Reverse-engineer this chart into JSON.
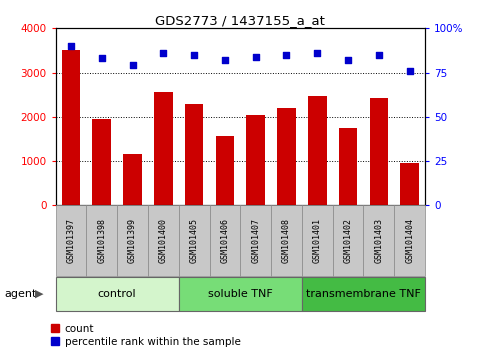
{
  "title": "GDS2773 / 1437155_a_at",
  "samples": [
    "GSM101397",
    "GSM101398",
    "GSM101399",
    "GSM101400",
    "GSM101405",
    "GSM101406",
    "GSM101407",
    "GSM101408",
    "GSM101401",
    "GSM101402",
    "GSM101403",
    "GSM101404"
  ],
  "counts": [
    3520,
    1960,
    1160,
    2560,
    2280,
    1570,
    2030,
    2200,
    2480,
    1740,
    2430,
    960
  ],
  "percentiles": [
    90,
    83,
    79,
    86,
    85,
    82,
    84,
    85,
    86,
    82,
    85,
    76
  ],
  "bar_color": "#cc0000",
  "dot_color": "#0000cc",
  "ylim_left": [
    0,
    4000
  ],
  "ylim_right": [
    0,
    100
  ],
  "yticks_left": [
    0,
    1000,
    2000,
    3000,
    4000
  ],
  "yticks_right": [
    0,
    25,
    50,
    75,
    100
  ],
  "groups": [
    {
      "label": "control",
      "start": 0,
      "end": 4,
      "color": "#d4f5cc"
    },
    {
      "label": "soluble TNF",
      "start": 4,
      "end": 8,
      "color": "#77dd77"
    },
    {
      "label": "transmembrane TNF",
      "start": 8,
      "end": 12,
      "color": "#44bb44"
    }
  ],
  "agent_label": "agent",
  "legend_count_label": "count",
  "legend_percentile_label": "percentile rank within the sample",
  "xticklabel_bg": "#c8c8c8",
  "xticklabel_edgecolor": "#888888"
}
